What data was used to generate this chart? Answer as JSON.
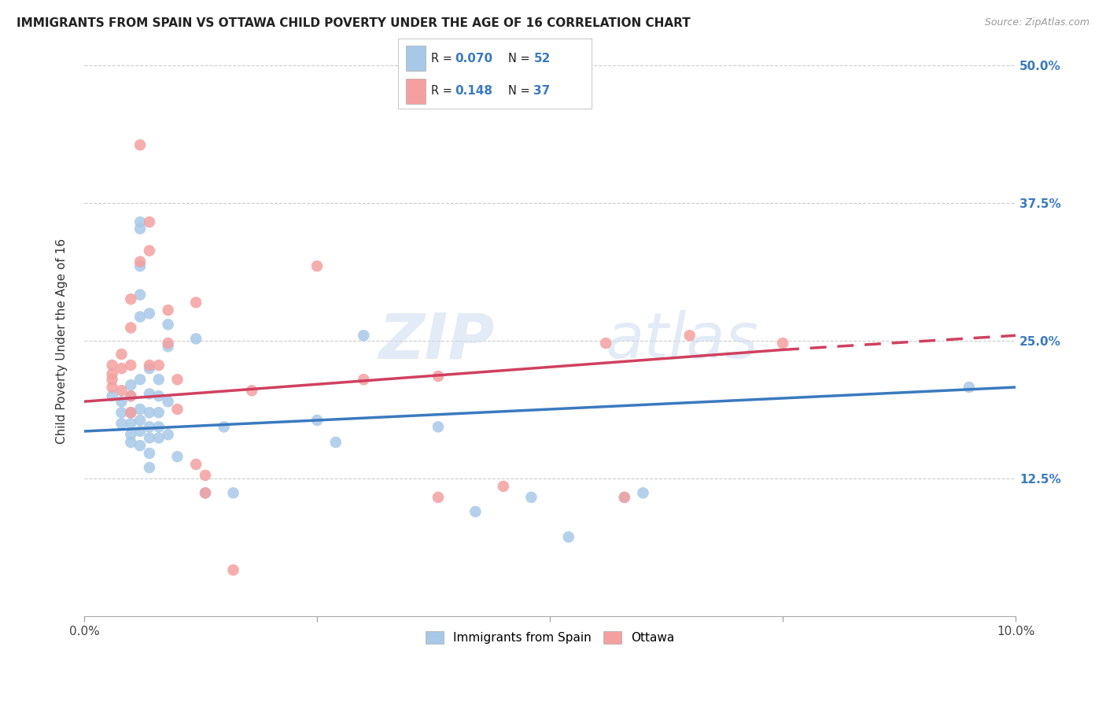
{
  "title": "IMMIGRANTS FROM SPAIN VS OTTAWA CHILD POVERTY UNDER THE AGE OF 16 CORRELATION CHART",
  "source": "Source: ZipAtlas.com",
  "ylabel": "Child Poverty Under the Age of 16",
  "xlim": [
    0,
    0.1
  ],
  "ylim": [
    0,
    0.5
  ],
  "xtick_vals": [
    0.0,
    0.025,
    0.05,
    0.075,
    0.1
  ],
  "xtick_labels": [
    "0.0%",
    "",
    "",
    "",
    "10.0%"
  ],
  "ytick_vals": [
    0.0,
    0.125,
    0.25,
    0.375,
    0.5
  ],
  "right_ytick_labels": [
    "50.0%",
    "37.5%",
    "25.0%",
    "12.5%"
  ],
  "right_ytick_vals": [
    0.5,
    0.375,
    0.25,
    0.125
  ],
  "legend_label_blue": "Immigrants from Spain",
  "legend_label_pink": "Ottawa",
  "blue_color": "#a8c8e8",
  "pink_color": "#f4a0a0",
  "blue_line_color": "#3a7abf",
  "pink_line_color": "#d04060",
  "blue_scatter": [
    [
      0.003,
      0.2
    ],
    [
      0.004,
      0.195
    ],
    [
      0.004,
      0.185
    ],
    [
      0.004,
      0.175
    ],
    [
      0.005,
      0.21
    ],
    [
      0.005,
      0.2
    ],
    [
      0.005,
      0.185
    ],
    [
      0.005,
      0.175
    ],
    [
      0.005,
      0.165
    ],
    [
      0.005,
      0.158
    ],
    [
      0.006,
      0.358
    ],
    [
      0.006,
      0.352
    ],
    [
      0.006,
      0.318
    ],
    [
      0.006,
      0.292
    ],
    [
      0.006,
      0.272
    ],
    [
      0.006,
      0.215
    ],
    [
      0.006,
      0.188
    ],
    [
      0.006,
      0.178
    ],
    [
      0.006,
      0.168
    ],
    [
      0.006,
      0.155
    ],
    [
      0.007,
      0.275
    ],
    [
      0.007,
      0.225
    ],
    [
      0.007,
      0.202
    ],
    [
      0.007,
      0.185
    ],
    [
      0.007,
      0.172
    ],
    [
      0.007,
      0.162
    ],
    [
      0.007,
      0.148
    ],
    [
      0.007,
      0.135
    ],
    [
      0.008,
      0.215
    ],
    [
      0.008,
      0.2
    ],
    [
      0.008,
      0.185
    ],
    [
      0.008,
      0.172
    ],
    [
      0.008,
      0.162
    ],
    [
      0.009,
      0.265
    ],
    [
      0.009,
      0.245
    ],
    [
      0.009,
      0.195
    ],
    [
      0.009,
      0.165
    ],
    [
      0.01,
      0.145
    ],
    [
      0.012,
      0.252
    ],
    [
      0.013,
      0.112
    ],
    [
      0.015,
      0.172
    ],
    [
      0.016,
      0.112
    ],
    [
      0.025,
      0.178
    ],
    [
      0.027,
      0.158
    ],
    [
      0.03,
      0.255
    ],
    [
      0.038,
      0.172
    ],
    [
      0.042,
      0.095
    ],
    [
      0.048,
      0.108
    ],
    [
      0.052,
      0.072
    ],
    [
      0.058,
      0.108
    ],
    [
      0.06,
      0.112
    ],
    [
      0.095,
      0.208
    ]
  ],
  "pink_scatter": [
    [
      0.003,
      0.22
    ],
    [
      0.003,
      0.215
    ],
    [
      0.003,
      0.208
    ],
    [
      0.003,
      0.228
    ],
    [
      0.004,
      0.238
    ],
    [
      0.004,
      0.225
    ],
    [
      0.004,
      0.205
    ],
    [
      0.005,
      0.288
    ],
    [
      0.005,
      0.262
    ],
    [
      0.005,
      0.228
    ],
    [
      0.005,
      0.2
    ],
    [
      0.005,
      0.185
    ],
    [
      0.006,
      0.428
    ],
    [
      0.006,
      0.322
    ],
    [
      0.007,
      0.358
    ],
    [
      0.007,
      0.332
    ],
    [
      0.007,
      0.228
    ],
    [
      0.008,
      0.228
    ],
    [
      0.009,
      0.278
    ],
    [
      0.009,
      0.248
    ],
    [
      0.01,
      0.215
    ],
    [
      0.01,
      0.188
    ],
    [
      0.012,
      0.285
    ],
    [
      0.012,
      0.138
    ],
    [
      0.013,
      0.128
    ],
    [
      0.013,
      0.112
    ],
    [
      0.016,
      0.042
    ],
    [
      0.018,
      0.205
    ],
    [
      0.025,
      0.318
    ],
    [
      0.03,
      0.215
    ],
    [
      0.038,
      0.218
    ],
    [
      0.038,
      0.108
    ],
    [
      0.045,
      0.118
    ],
    [
      0.056,
      0.248
    ],
    [
      0.058,
      0.108
    ],
    [
      0.065,
      0.255
    ],
    [
      0.075,
      0.248
    ]
  ],
  "blue_trendline_solid": [
    [
      0.0,
      0.168
    ],
    [
      0.1,
      0.208
    ]
  ],
  "pink_trendline_solid": [
    [
      0.0,
      0.195
    ],
    [
      0.075,
      0.242
    ]
  ],
  "pink_trendline_dashed": [
    [
      0.075,
      0.242
    ],
    [
      0.1,
      0.255
    ]
  ],
  "watermark_zip": "ZIP",
  "watermark_atlas": "atlas",
  "background_color": "#ffffff",
  "grid_color": "#cccccc"
}
